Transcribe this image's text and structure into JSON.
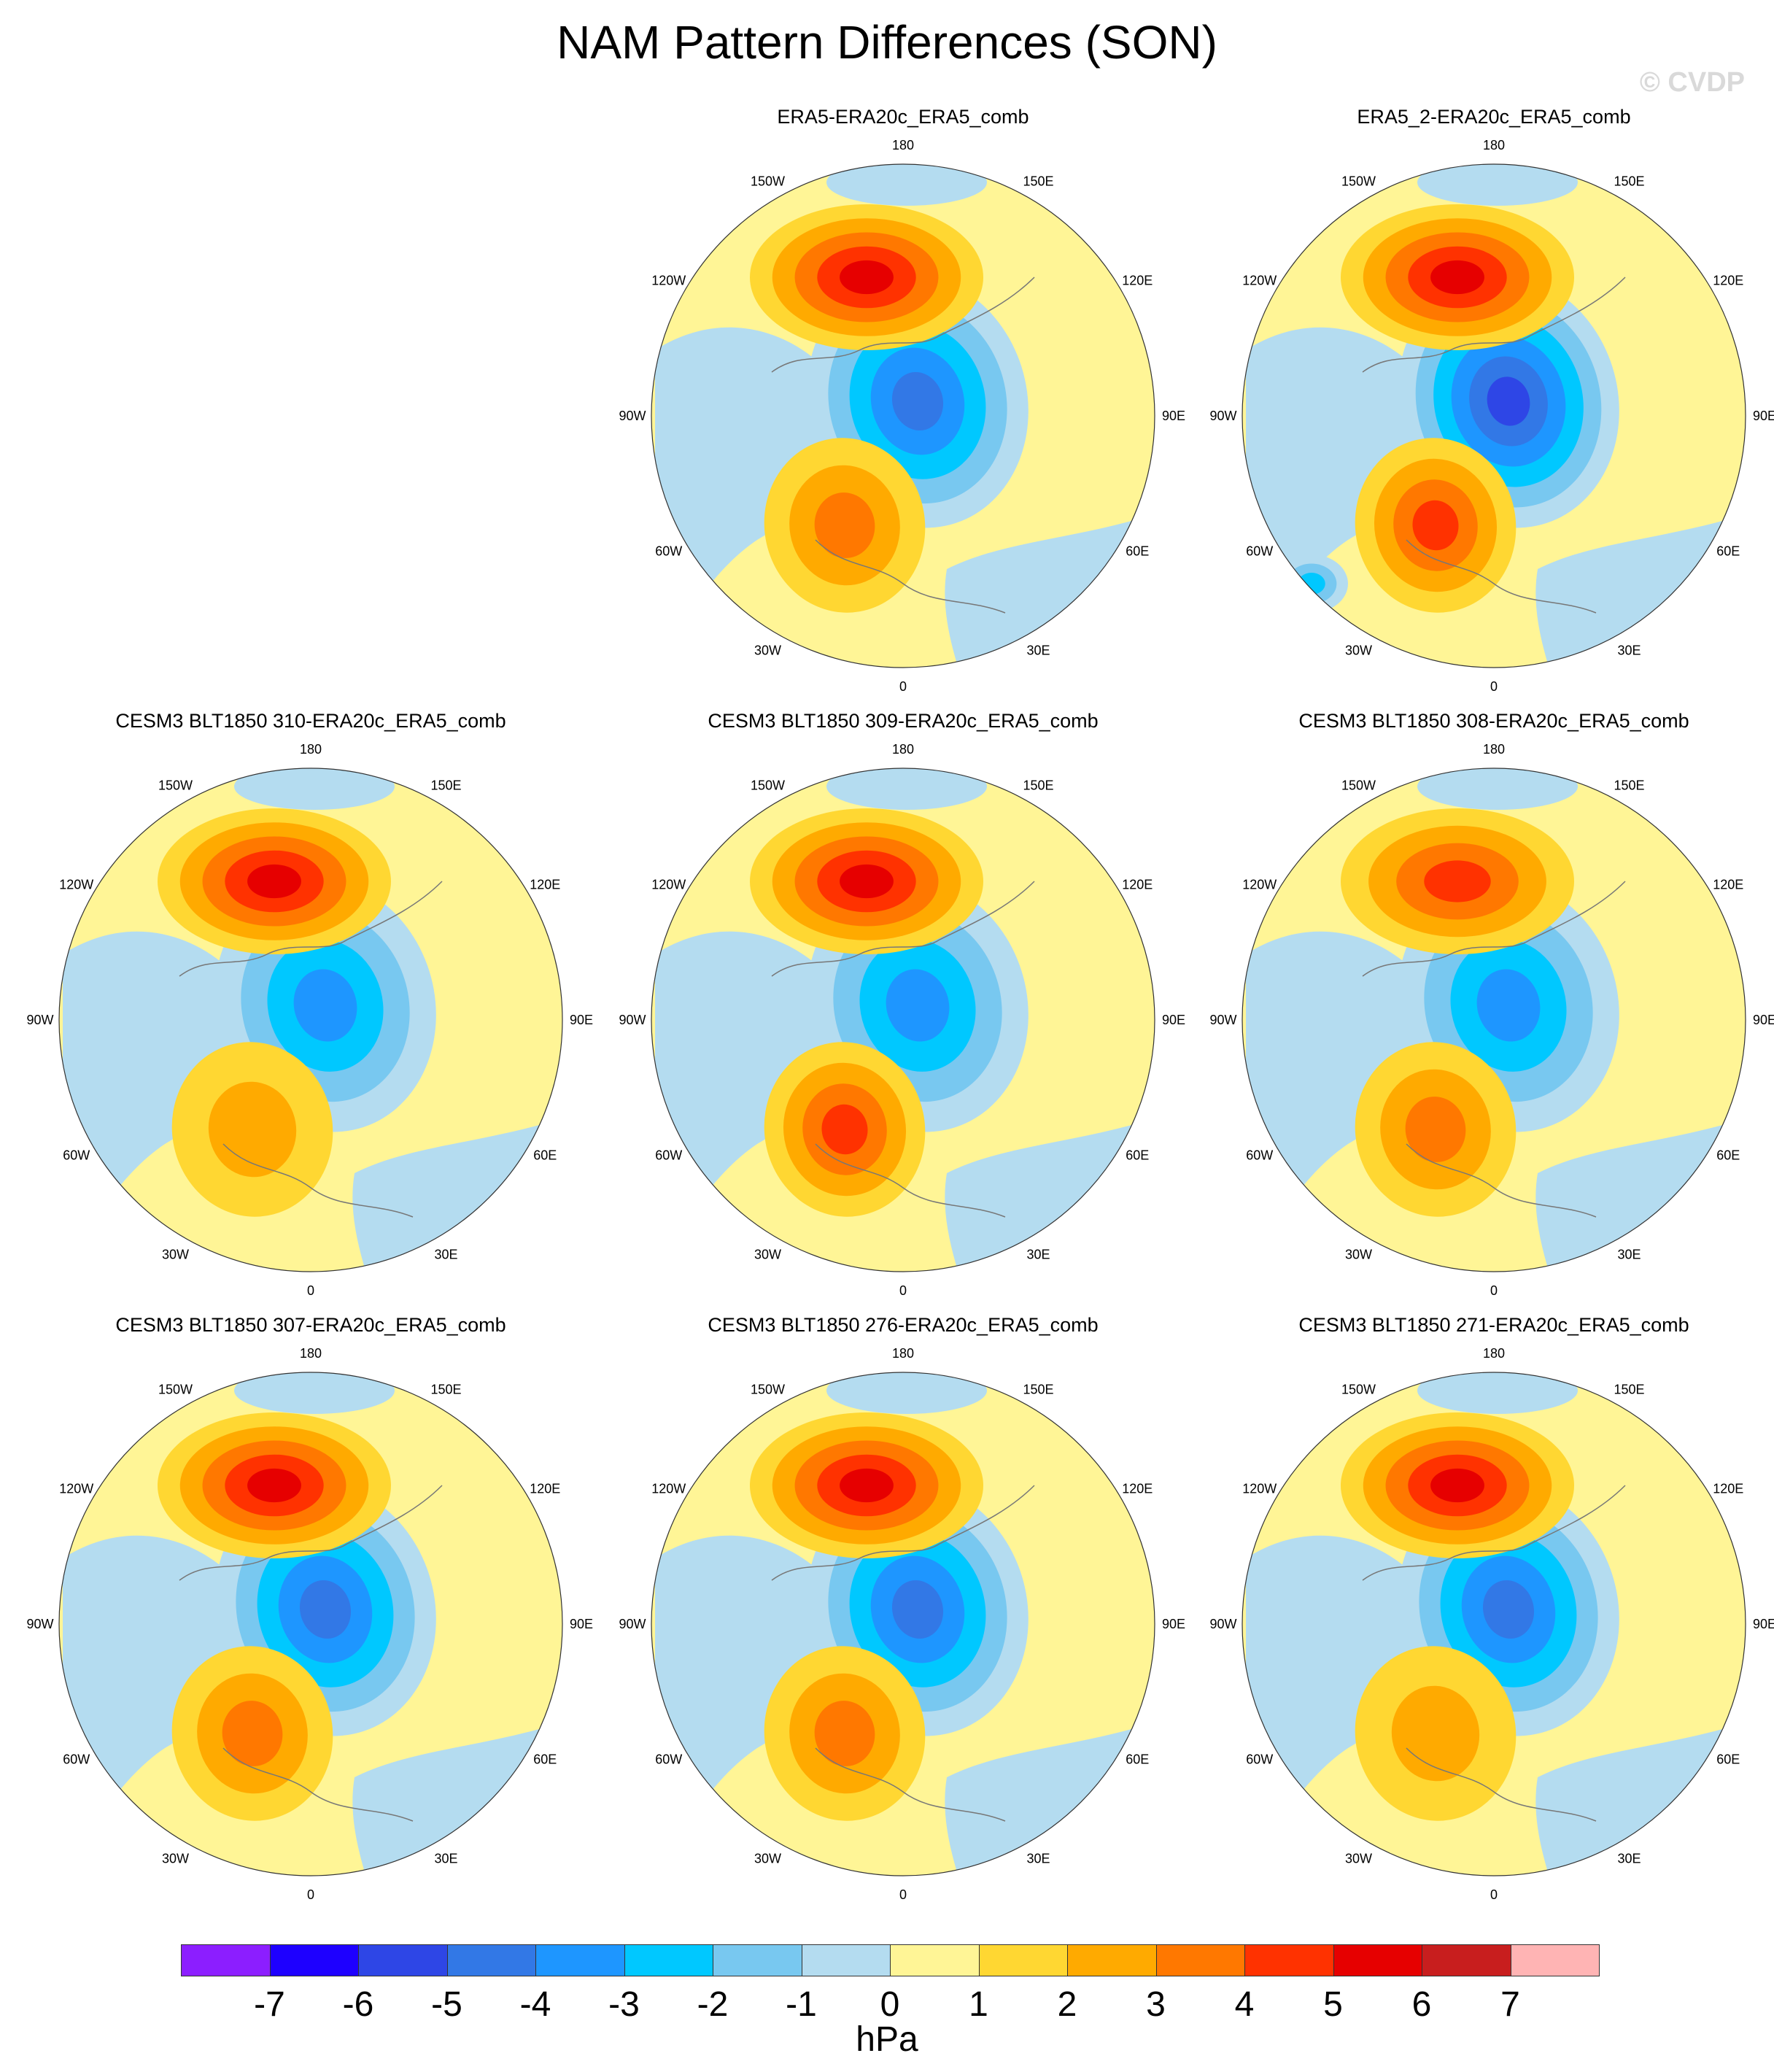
{
  "title": "NAM Pattern Differences (SON)",
  "watermark": "© CVDP",
  "lon_labels": [
    "180",
    "150W",
    "150E",
    "120W",
    "120E",
    "90W",
    "90E",
    "60W",
    "60E",
    "30W",
    "30E",
    "0"
  ],
  "panels": [
    {
      "title": "ERA5-ERA20c_ERA5_comb",
      "row": 0,
      "col": 1,
      "features": {
        "pac_high": 5,
        "arctic_low": -4,
        "atl_high": 3,
        "atl_low": 0,
        "na_low": 0
      }
    },
    {
      "title": "ERA5_2-ERA20c_ERA5_comb",
      "row": 0,
      "col": 2,
      "features": {
        "pac_high": 5,
        "arctic_low": -5,
        "atl_high": 4,
        "atl_low": -2,
        "na_low": 0
      }
    },
    {
      "title": "CESM3 BLT1850 310-ERA20c_ERA5_comb",
      "row": 1,
      "col": 0,
      "features": {
        "pac_high": 5,
        "arctic_low": -3,
        "atl_high": 2,
        "atl_low": 0,
        "na_low": 0
      }
    },
    {
      "title": "CESM3 BLT1850 309-ERA20c_ERA5_comb",
      "row": 1,
      "col": 1,
      "features": {
        "pac_high": 5,
        "arctic_low": -3,
        "atl_high": 4,
        "atl_low": 0,
        "na_low": 0
      }
    },
    {
      "title": "CESM3 BLT1850 308-ERA20c_ERA5_comb",
      "row": 1,
      "col": 2,
      "features": {
        "pac_high": 4,
        "arctic_low": -3,
        "atl_high": 3,
        "atl_low": 0,
        "na_low": 0
      }
    },
    {
      "title": "CESM3 BLT1850 307-ERA20c_ERA5_comb",
      "row": 2,
      "col": 0,
      "features": {
        "pac_high": 5,
        "arctic_low": -4,
        "atl_high": 3,
        "atl_low": 0,
        "na_low": 0
      }
    },
    {
      "title": "CESM3 BLT1850 276-ERA20c_ERA5_comb",
      "row": 2,
      "col": 1,
      "features": {
        "pac_high": 5,
        "arctic_low": -4,
        "atl_high": 3,
        "atl_low": 0,
        "na_low": 0
      }
    },
    {
      "title": "CESM3 BLT1850 271-ERA20c_ERA5_comb",
      "row": 2,
      "col": 2,
      "features": {
        "pac_high": 5,
        "arctic_low": -4,
        "atl_high": 2,
        "atl_low": 0,
        "na_low": 0
      }
    }
  ],
  "colorbar": {
    "colors": [
      "#8c1eff",
      "#1e00ff",
      "#2e46e6",
      "#3278e6",
      "#1e96ff",
      "#00c8ff",
      "#78c8f0",
      "#b4dcf0",
      "#fff596",
      "#ffd732",
      "#ffaa00",
      "#ff7800",
      "#ff3200",
      "#e60000",
      "#c81e1e",
      "#ffb4b4"
    ],
    "ticks": [
      "-7",
      "-6",
      "-5",
      "-4",
      "-3",
      "-2",
      "-1",
      "0",
      "1",
      "2",
      "3",
      "4",
      "5",
      "6",
      "7"
    ],
    "units": "hPa"
  }
}
